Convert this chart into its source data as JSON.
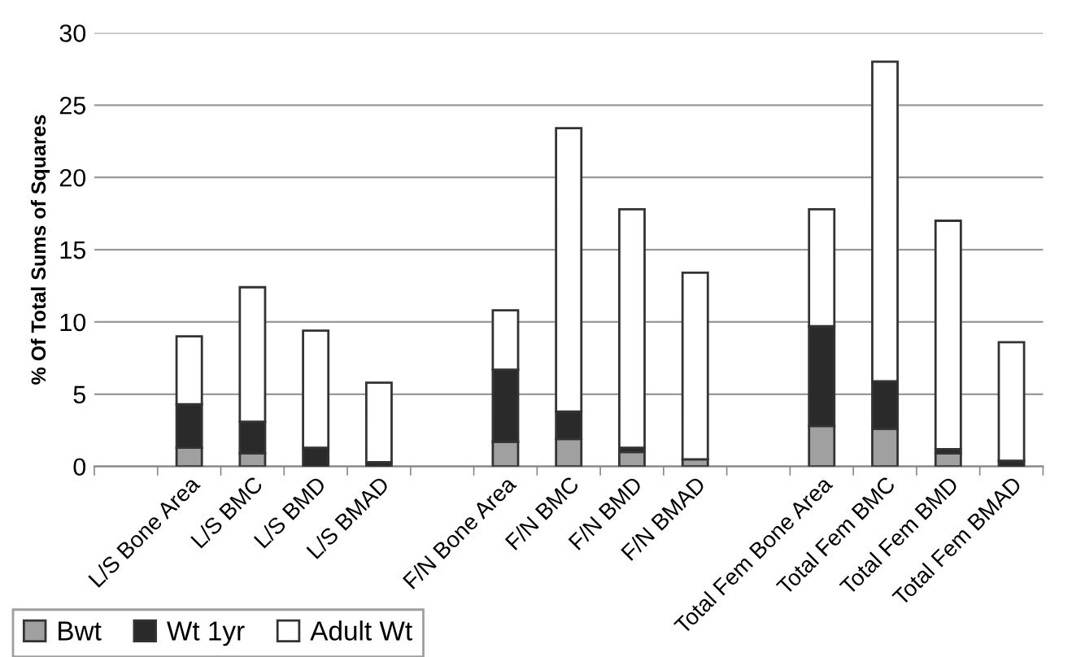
{
  "chart_data": {
    "type": "bar",
    "stacked": true,
    "ylabel": "% Of Total Sums of Squares",
    "categories": [
      null,
      "L/S Bone Area",
      "L/S BMC",
      "L/S BMD",
      "L/S BMAD",
      null,
      "F/N Bone Area",
      "F/N BMC",
      "F/N BMD",
      "F/N BMAD",
      null,
      "Total Fem Bone Area",
      "Total Fem BMC",
      "Total Fem BMD",
      "Total Fem BMAD"
    ],
    "series": [
      {
        "name": "Bwt",
        "color": "#a0a0a0",
        "values": [
          null,
          1.3,
          0.9,
          null,
          null,
          null,
          1.7,
          1.9,
          1.0,
          0.5,
          null,
          2.8,
          2.6,
          0.9,
          null
        ]
      },
      {
        "name": "Wt 1yr",
        "color": "#2a2a2a",
        "values": [
          null,
          3.0,
          2.2,
          1.3,
          0.3,
          null,
          5.0,
          1.9,
          0.3,
          null,
          null,
          6.9,
          3.3,
          0.3,
          0.4
        ]
      },
      {
        "name": "Adult Wt",
        "color": "#ffffff",
        "values": [
          null,
          4.7,
          9.3,
          8.1,
          5.5,
          null,
          4.1,
          19.6,
          16.5,
          12.9,
          null,
          8.1,
          22.1,
          15.8,
          8.2
        ]
      }
    ],
    "ylim": [
      0,
      30
    ],
    "yticks": [
      0,
      5,
      10,
      15,
      20,
      25,
      30
    ],
    "grid": "y",
    "legend": "bottom left"
  }
}
